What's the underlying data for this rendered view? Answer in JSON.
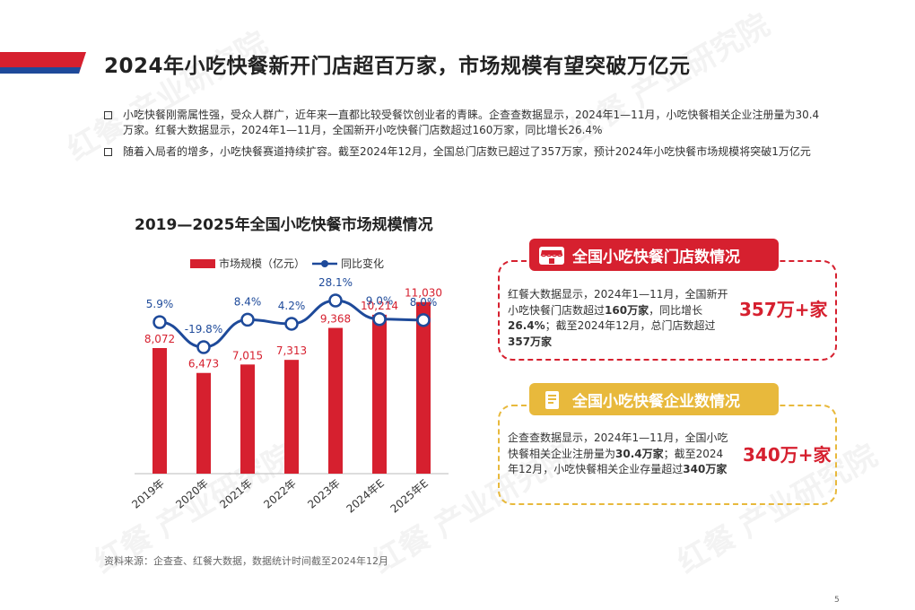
{
  "header": {
    "title": "2024年小吃快餐新开门店超百万家，市场规模有望突破万亿元",
    "accent_red": "#d6202f",
    "accent_blue": "#1e4a9a"
  },
  "bullets": [
    "小吃快餐刚需属性强，受众人群广，近年来一直都比较受餐饮创业者的青睐。企查查数据显示，2024年1—11月，小吃快餐相关企业注册量为30.4万家。红餐大数据显示，2024年1—11月，全国新开小吃快餐门店数超过160万家，同比增长26.4%",
    "随着入局者的增多，小吃快餐赛道持续扩容。截至2024年12月，全国总门店数已超过了357万家，预计2024年小吃快餐市场规模将突破1万亿元"
  ],
  "chart_data": {
    "type": "bar",
    "title": "2019—2025年全国小吃快餐市场规模情况",
    "categories": [
      "2019年",
      "2020年",
      "2021年",
      "2022年",
      "2023年",
      "2024年E",
      "2025年E"
    ],
    "series": [
      {
        "name": "市场规模（亿元）",
        "type": "bar",
        "color": "#d6202f",
        "values": [
          8072,
          6473,
          7015,
          7313,
          9368,
          10214,
          11030
        ],
        "labels": [
          "8,072",
          "6,473",
          "7,015",
          "7,313",
          "9,368",
          "10,214",
          "11,030"
        ]
      },
      {
        "name": "同比变化",
        "type": "line",
        "color": "#1e4a9a",
        "values": [
          5.9,
          -19.8,
          8.4,
          4.2,
          28.1,
          9.0,
          8.0
        ],
        "labels": [
          "5.9%",
          "-19.8%",
          "8.4%",
          "4.2%",
          "28.1%",
          "9.0%",
          "8.0%"
        ]
      }
    ],
    "ylim": [
      0,
      12000
    ],
    "y2lim": [
      -25,
      30
    ],
    "legend": "top",
    "grid": false
  },
  "cards": [
    {
      "title": "全国小吃快餐门店数情况",
      "icon": "storefront-icon",
      "color": "#d6202f",
      "text_parts": [
        {
          "t": "红餐大数据显示，2024年1—11月，全国新开小吃快餐门店数超过",
          "b": false
        },
        {
          "t": "160万家",
          "b": true
        },
        {
          "t": "，同比增长",
          "b": false
        },
        {
          "t": "26.4%",
          "b": true
        },
        {
          "t": "；截至2024年12月，总门店数超过",
          "b": false
        },
        {
          "t": "357万家",
          "b": true
        }
      ],
      "highlight": "357万+家"
    },
    {
      "title": "全国小吃快餐企业数情况",
      "icon": "document-icon",
      "color": "#e8b93c",
      "text_parts": [
        {
          "t": "企查查数据显示，2024年1—11月，全国小吃快餐相关企业注册量为",
          "b": false
        },
        {
          "t": "30.4万家",
          "b": true
        },
        {
          "t": "；截至2024年12月，小吃快餐相关企业存量超过",
          "b": false
        },
        {
          "t": "340万家",
          "b": true
        }
      ],
      "highlight": "340万+家"
    }
  ],
  "source": "资料来源：企查查、红餐大数据，数据统计时间截至2024年12月",
  "page_number": "5",
  "watermark": "红餐 产业研究院"
}
